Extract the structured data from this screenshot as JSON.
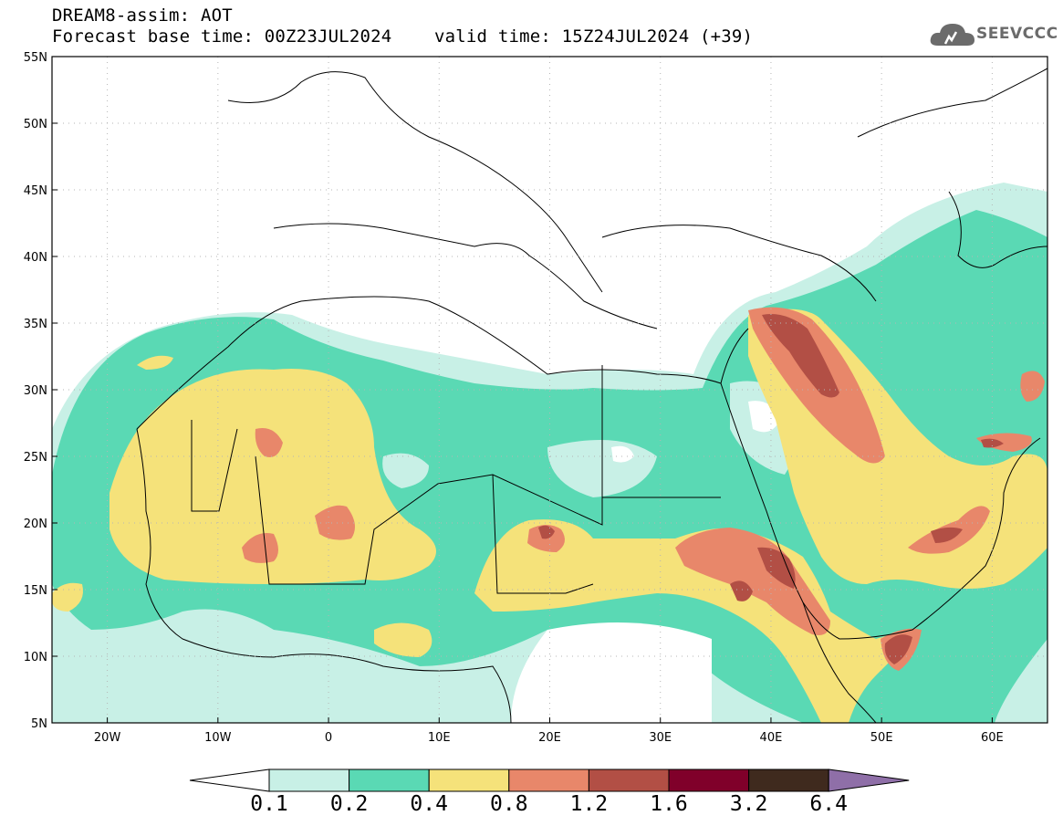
{
  "header": {
    "title_line1": "DREAM8-assim: AOT",
    "title_line2": "Forecast base time: 00Z23JUL2024    valid time: 15Z24JUL2024 (+39)"
  },
  "logo": {
    "text": "SEEVCCC",
    "icon": "cloud-icon"
  },
  "map": {
    "projection": "lat-lon",
    "lon_range": [
      -25,
      65
    ],
    "lat_range": [
      5,
      55
    ],
    "x_ticks": [
      "20W",
      "10W",
      "0",
      "10E",
      "20E",
      "30E",
      "40E",
      "50E",
      "60E"
    ],
    "y_ticks": [
      "55N",
      "50N",
      "45N",
      "40N",
      "35N",
      "30N",
      "25N",
      "20N",
      "15N",
      "10N",
      "5N"
    ],
    "gridlines": "dotted"
  },
  "colorbar": {
    "labels": [
      "0.1",
      "0.2",
      "0.4",
      "0.8",
      "1.2",
      "1.6",
      "3.2",
      "6.4"
    ],
    "colors": [
      "#ffffff",
      "#c8f0e6",
      "#5ad9b4",
      "#f5e27a",
      "#e8876a",
      "#b24f45",
      "#80002a",
      "#3f2a1e",
      "#8f6fa8"
    ]
  }
}
